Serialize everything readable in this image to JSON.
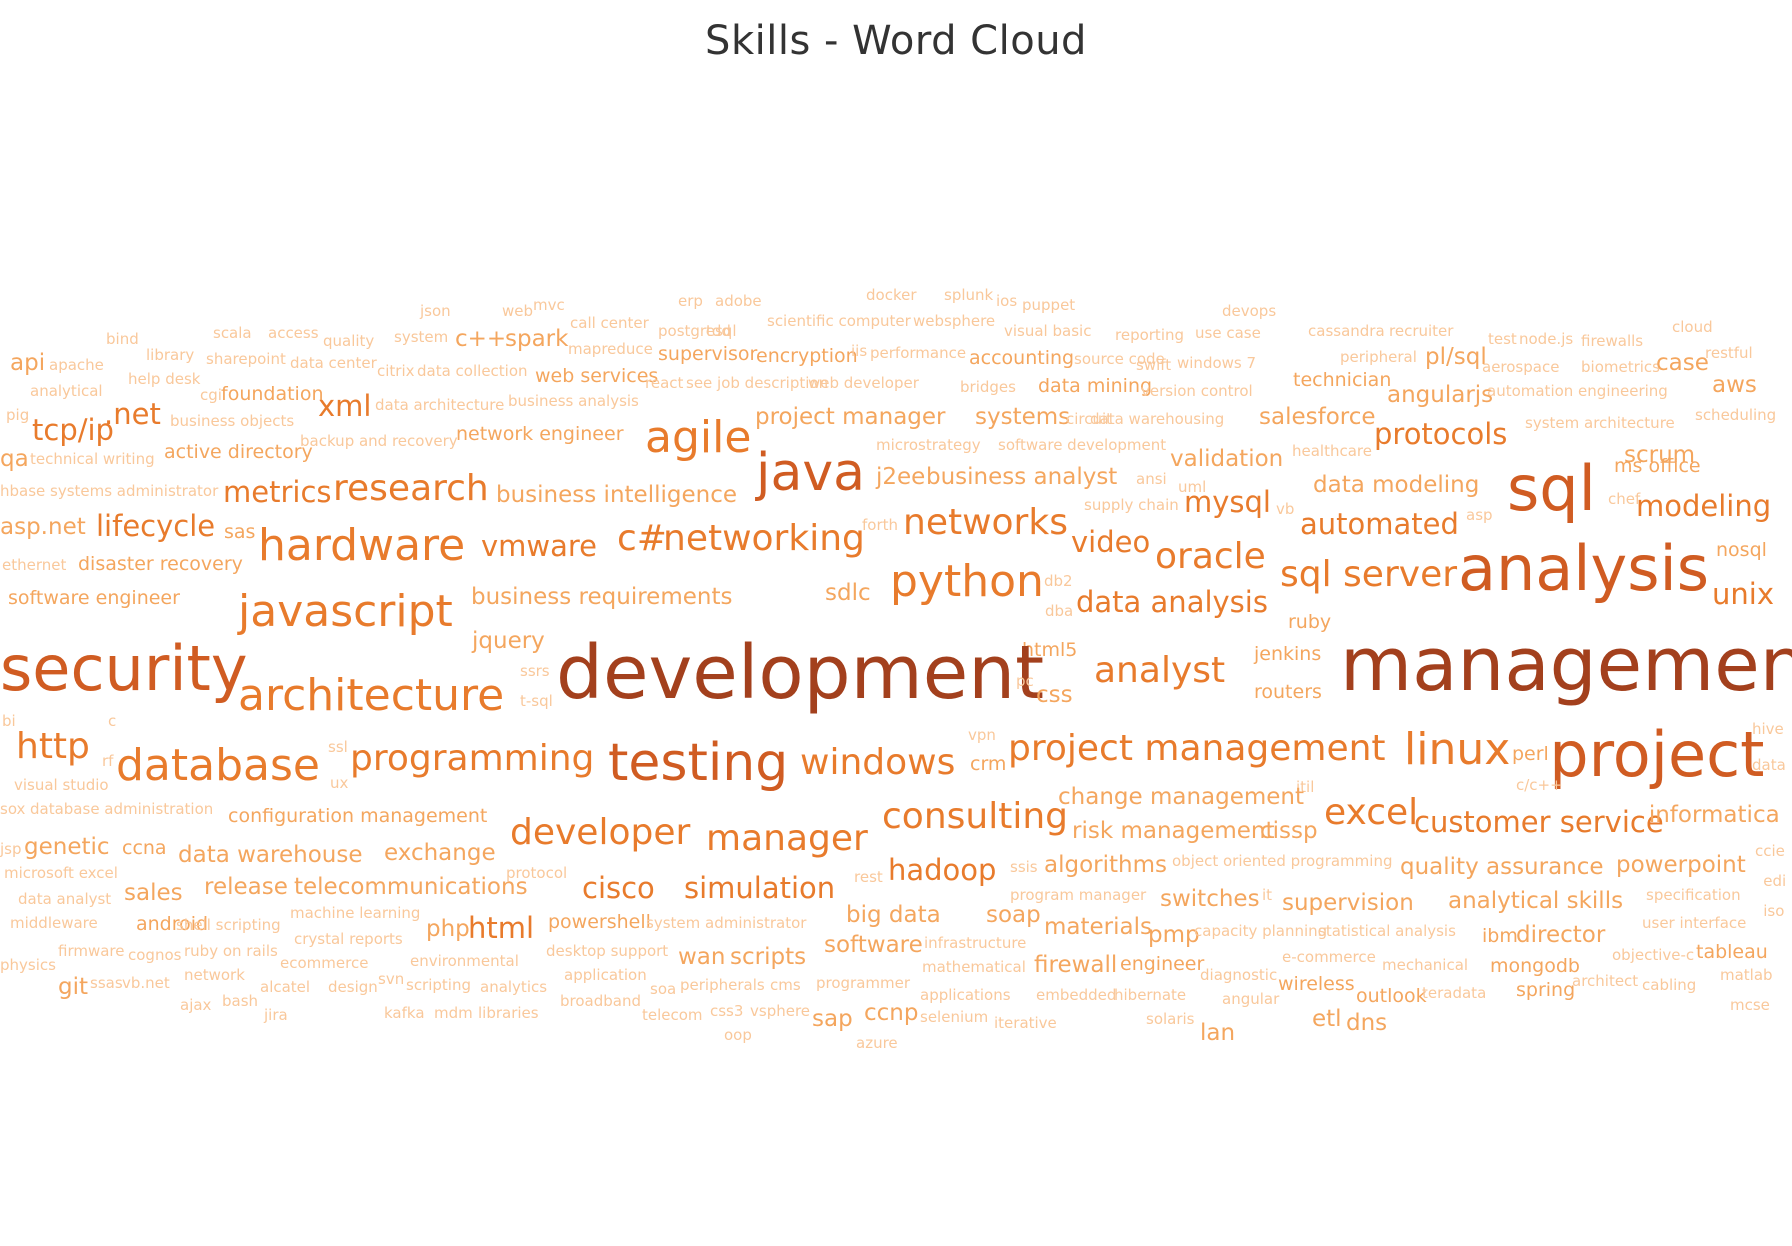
{
  "chart_data": {
    "type": "word_cloud",
    "title": "Skills - Word Cloud",
    "palette": [
      "#f9c89b",
      "#f4a65e",
      "#e87b2c",
      "#d05c22",
      "#a3401d"
    ],
    "words": [
      {
        "text": "docker",
        "weight": 1
      },
      {
        "text": "splunk",
        "weight": 1
      },
      {
        "text": "ios",
        "weight": 1
      },
      {
        "text": "puppet",
        "weight": 1
      },
      {
        "text": "erp",
        "weight": 1
      },
      {
        "text": "adobe",
        "weight": 1
      },
      {
        "text": "json",
        "weight": 1
      },
      {
        "text": "web",
        "weight": 1
      },
      {
        "text": "mvc",
        "weight": 1
      },
      {
        "text": "devops",
        "weight": 1
      },
      {
        "text": "cloud",
        "weight": 1
      },
      {
        "text": "call center",
        "weight": 1
      },
      {
        "text": "postgresql",
        "weight": 1
      },
      {
        "text": "tdd",
        "weight": 1
      },
      {
        "text": "scientific computer",
        "weight": 1
      },
      {
        "text": "websphere",
        "weight": 1
      },
      {
        "text": "visual basic",
        "weight": 1
      },
      {
        "text": "reporting",
        "weight": 1
      },
      {
        "text": "use case",
        "weight": 1
      },
      {
        "text": "cassandra",
        "weight": 1
      },
      {
        "text": "recruiter",
        "weight": 1
      },
      {
        "text": "test",
        "weight": 1
      },
      {
        "text": "node.js",
        "weight": 1
      },
      {
        "text": "firewalls",
        "weight": 1
      },
      {
        "text": "bind",
        "weight": 1
      },
      {
        "text": "scala",
        "weight": 1
      },
      {
        "text": "access",
        "weight": 1
      },
      {
        "text": "quality",
        "weight": 1
      },
      {
        "text": "system",
        "weight": 1
      },
      {
        "text": "c++",
        "weight": 3
      },
      {
        "text": "spark",
        "weight": 3
      },
      {
        "text": "mapreduce",
        "weight": 1
      },
      {
        "text": "library",
        "weight": 1
      },
      {
        "text": "supervisor",
        "weight": 2
      },
      {
        "text": "encryption",
        "weight": 2
      },
      {
        "text": "iis",
        "weight": 1
      },
      {
        "text": "performance",
        "weight": 1
      },
      {
        "text": "accounting",
        "weight": 2
      },
      {
        "text": "source code",
        "weight": 1
      },
      {
        "text": "swift",
        "weight": 1
      },
      {
        "text": "windows 7",
        "weight": 1
      },
      {
        "text": "peripheral",
        "weight": 1
      },
      {
        "text": "pl/sql",
        "weight": 3
      },
      {
        "text": "aerospace",
        "weight": 1
      },
      {
        "text": "biometrics",
        "weight": 1
      },
      {
        "text": "case",
        "weight": 3
      },
      {
        "text": "restful",
        "weight": 1
      },
      {
        "text": "api",
        "weight": 3
      },
      {
        "text": "apache",
        "weight": 1
      },
      {
        "text": "sharepoint",
        "weight": 1
      },
      {
        "text": "data center",
        "weight": 1
      },
      {
        "text": "citrix",
        "weight": 1
      },
      {
        "text": "data collection",
        "weight": 1
      },
      {
        "text": "web services",
        "weight": 2
      },
      {
        "text": "react",
        "weight": 1
      },
      {
        "text": "see job description",
        "weight": 1
      },
      {
        "text": "web developer",
        "weight": 1
      },
      {
        "text": "bridges",
        "weight": 1
      },
      {
        "text": "data mining",
        "weight": 2
      },
      {
        "text": "version control",
        "weight": 1
      },
      {
        "text": "technician",
        "weight": 2
      },
      {
        "text": "aws",
        "weight": 3
      },
      {
        "text": "help desk",
        "weight": 1
      },
      {
        "text": "analytical",
        "weight": 1
      },
      {
        "text": "cgi",
        "weight": 1
      },
      {
        "text": "foundation",
        "weight": 2
      },
      {
        "text": "xml",
        "weight": 4
      },
      {
        "text": "data architecture",
        "weight": 1
      },
      {
        "text": "business analysis",
        "weight": 1
      },
      {
        "text": "angularjs",
        "weight": 3
      },
      {
        "text": "automation engineering",
        "weight": 1
      },
      {
        "text": "pig",
        "weight": 1
      },
      {
        "text": "tcp/ip",
        "weight": 4
      },
      {
        "text": ".net",
        "weight": 4
      },
      {
        "text": "business objects",
        "weight": 1
      },
      {
        "text": "project manager",
        "weight": 3
      },
      {
        "text": "systems",
        "weight": 3
      },
      {
        "text": "circuit",
        "weight": 1
      },
      {
        "text": "data warehousing",
        "weight": 1
      },
      {
        "text": "salesforce",
        "weight": 3
      },
      {
        "text": "scheduling",
        "weight": 1
      },
      {
        "text": "system architecture",
        "weight": 1
      },
      {
        "text": "agile",
        "weight": 6
      },
      {
        "text": "protocols",
        "weight": 4
      },
      {
        "text": "qa",
        "weight": 3
      },
      {
        "text": "technical writing",
        "weight": 1
      },
      {
        "text": "active directory",
        "weight": 2
      },
      {
        "text": "backup and recovery",
        "weight": 1
      },
      {
        "text": "network engineer",
        "weight": 2
      },
      {
        "text": "microstrategy",
        "weight": 1
      },
      {
        "text": "software development",
        "weight": 1
      },
      {
        "text": "healthcare",
        "weight": 1
      },
      {
        "text": "validation",
        "weight": 3
      },
      {
        "text": "scrum",
        "weight": 3
      },
      {
        "text": "java",
        "weight": 7
      },
      {
        "text": "ms office",
        "weight": 2
      },
      {
        "text": "hbase",
        "weight": 1
      },
      {
        "text": "systems administrator",
        "weight": 1
      },
      {
        "text": "metrics",
        "weight": 4
      },
      {
        "text": "research",
        "weight": 5
      },
      {
        "text": "business intelligence",
        "weight": 3
      },
      {
        "text": "j2ee",
        "weight": 3
      },
      {
        "text": "business analyst",
        "weight": 3
      },
      {
        "text": "ansi",
        "weight": 1
      },
      {
        "text": "uml",
        "weight": 1
      },
      {
        "text": "data modeling",
        "weight": 3
      },
      {
        "text": "sql",
        "weight": 8
      },
      {
        "text": "chef",
        "weight": 1
      },
      {
        "text": "modeling",
        "weight": 4
      },
      {
        "text": "asp.net",
        "weight": 3
      },
      {
        "text": "lifecycle",
        "weight": 4
      },
      {
        "text": "sas",
        "weight": 2
      },
      {
        "text": "supply chain",
        "weight": 1
      },
      {
        "text": "mysql",
        "weight": 4
      },
      {
        "text": "vb",
        "weight": 1
      },
      {
        "text": "automated",
        "weight": 4
      },
      {
        "text": "asp",
        "weight": 1
      },
      {
        "text": "hardware",
        "weight": 6
      },
      {
        "text": "forth",
        "weight": 1
      },
      {
        "text": "c#",
        "weight": 5
      },
      {
        "text": "networking",
        "weight": 5
      },
      {
        "text": "networks",
        "weight": 5
      },
      {
        "text": "video",
        "weight": 4
      },
      {
        "text": "oracle",
        "weight": 5
      },
      {
        "text": "nosql",
        "weight": 2
      },
      {
        "text": "ethernet",
        "weight": 1
      },
      {
        "text": "disaster recovery",
        "weight": 2
      },
      {
        "text": "vmware",
        "weight": 4
      },
      {
        "text": "db2",
        "weight": 1
      },
      {
        "text": "sql server",
        "weight": 5
      },
      {
        "text": "analysis",
        "weight": 8
      },
      {
        "text": "python",
        "weight": 6
      },
      {
        "text": "sdlc",
        "weight": 3
      },
      {
        "text": "unix",
        "weight": 4
      },
      {
        "text": "software engineer",
        "weight": 2
      },
      {
        "text": "business requirements",
        "weight": 3
      },
      {
        "text": "dba",
        "weight": 1
      },
      {
        "text": "data analysis",
        "weight": 4
      },
      {
        "text": "ruby",
        "weight": 2
      },
      {
        "text": "javascript",
        "weight": 6
      },
      {
        "text": "jquery",
        "weight": 3
      },
      {
        "text": "security",
        "weight": 8
      },
      {
        "text": "html5",
        "weight": 2
      },
      {
        "text": "jenkins",
        "weight": 2
      },
      {
        "text": "development",
        "weight": 10
      },
      {
        "text": "management",
        "weight": 10
      },
      {
        "text": "ssrs",
        "weight": 1
      },
      {
        "text": "analyst",
        "weight": 5
      },
      {
        "text": "architecture",
        "weight": 6
      },
      {
        "text": "pc",
        "weight": 1
      },
      {
        "text": "css",
        "weight": 3
      },
      {
        "text": "routers",
        "weight": 2
      },
      {
        "text": "t-sql",
        "weight": 1
      },
      {
        "text": "bi",
        "weight": 1
      },
      {
        "text": "c",
        "weight": 1
      },
      {
        "text": "vpn",
        "weight": 1
      },
      {
        "text": "hive",
        "weight": 1
      },
      {
        "text": "http",
        "weight": 5
      },
      {
        "text": "ssl",
        "weight": 1
      },
      {
        "text": "programming",
        "weight": 5
      },
      {
        "text": "project management",
        "weight": 5
      },
      {
        "text": "linux",
        "weight": 6
      },
      {
        "text": "perl",
        "weight": 2
      },
      {
        "text": "project",
        "weight": 8
      },
      {
        "text": "rf",
        "weight": 1
      },
      {
        "text": "database",
        "weight": 6
      },
      {
        "text": "testing",
        "weight": 7
      },
      {
        "text": "windows",
        "weight": 5
      },
      {
        "text": "crm",
        "weight": 2
      },
      {
        "text": "data",
        "weight": 1
      },
      {
        "text": "visual studio",
        "weight": 1
      },
      {
        "text": "ux",
        "weight": 1
      },
      {
        "text": "itil",
        "weight": 1
      },
      {
        "text": "c/c++",
        "weight": 1
      },
      {
        "text": "change management",
        "weight": 3
      },
      {
        "text": "sox",
        "weight": 1
      },
      {
        "text": "database administration",
        "weight": 1
      },
      {
        "text": "configuration management",
        "weight": 2
      },
      {
        "text": "consulting",
        "weight": 5
      },
      {
        "text": "excel",
        "weight": 5
      },
      {
        "text": "customer service",
        "weight": 4
      },
      {
        "text": "informatica",
        "weight": 3
      },
      {
        "text": "developer",
        "weight": 5
      },
      {
        "text": "manager",
        "weight": 5
      },
      {
        "text": "risk management",
        "weight": 3
      },
      {
        "text": "cissp",
        "weight": 3
      },
      {
        "text": "jsp",
        "weight": 1
      },
      {
        "text": "genetic",
        "weight": 3
      },
      {
        "text": "ccna",
        "weight": 2
      },
      {
        "text": "data warehouse",
        "weight": 3
      },
      {
        "text": "exchange",
        "weight": 3
      },
      {
        "text": "hadoop",
        "weight": 4
      },
      {
        "text": "ssis",
        "weight": 1
      },
      {
        "text": "algorithms",
        "weight": 3
      },
      {
        "text": "object oriented programming",
        "weight": 1
      },
      {
        "text": "quality assurance",
        "weight": 3
      },
      {
        "text": "powerpoint",
        "weight": 3
      },
      {
        "text": "ccie",
        "weight": 1
      },
      {
        "text": "microsoft excel",
        "weight": 1
      },
      {
        "text": "protocol",
        "weight": 1
      },
      {
        "text": "rest",
        "weight": 1
      },
      {
        "text": "edi",
        "weight": 1
      },
      {
        "text": "sales",
        "weight": 3
      },
      {
        "text": "release",
        "weight": 3
      },
      {
        "text": "telecommunications",
        "weight": 3
      },
      {
        "text": "cisco",
        "weight": 4
      },
      {
        "text": "simulation",
        "weight": 4
      },
      {
        "text": "program manager",
        "weight": 1
      },
      {
        "text": "it",
        "weight": 1
      },
      {
        "text": "switches",
        "weight": 3
      },
      {
        "text": "supervision",
        "weight": 3
      },
      {
        "text": "analytical skills",
        "weight": 3
      },
      {
        "text": "specification",
        "weight": 1
      },
      {
        "text": "data analyst",
        "weight": 1
      },
      {
        "text": "machine learning",
        "weight": 1
      },
      {
        "text": "big data",
        "weight": 3
      },
      {
        "text": "soap",
        "weight": 3
      },
      {
        "text": "iso",
        "weight": 1
      },
      {
        "text": "middleware",
        "weight": 1
      },
      {
        "text": "android",
        "weight": 2
      },
      {
        "text": "shell scripting",
        "weight": 1
      },
      {
        "text": "php",
        "weight": 3
      },
      {
        "text": "html",
        "weight": 4
      },
      {
        "text": "powershell",
        "weight": 2
      },
      {
        "text": "system administrator",
        "weight": 1
      },
      {
        "text": "materials",
        "weight": 3
      },
      {
        "text": "pmp",
        "weight": 3
      },
      {
        "text": "capacity planning",
        "weight": 1
      },
      {
        "text": "statistical analysis",
        "weight": 1
      },
      {
        "text": "ibm",
        "weight": 2
      },
      {
        "text": "director",
        "weight": 3
      },
      {
        "text": "user interface",
        "weight": 1
      },
      {
        "text": "crystal reports",
        "weight": 1
      },
      {
        "text": "firmware",
        "weight": 1
      },
      {
        "text": "cognos",
        "weight": 1
      },
      {
        "text": "ruby on rails",
        "weight": 1
      },
      {
        "text": "infrastructure",
        "weight": 1
      },
      {
        "text": "desktop support",
        "weight": 1
      },
      {
        "text": "wan",
        "weight": 3
      },
      {
        "text": "scripts",
        "weight": 3
      },
      {
        "text": "software",
        "weight": 3
      },
      {
        "text": "objective-c",
        "weight": 1
      },
      {
        "text": "tableau",
        "weight": 2
      },
      {
        "text": "physics",
        "weight": 1
      },
      {
        "text": "ecommerce",
        "weight": 1
      },
      {
        "text": "environmental",
        "weight": 1
      },
      {
        "text": "e-commerce",
        "weight": 1
      },
      {
        "text": "mechanical",
        "weight": 1
      },
      {
        "text": "mongodb",
        "weight": 2
      },
      {
        "text": "mathematical",
        "weight": 1
      },
      {
        "text": "firewall",
        "weight": 3
      },
      {
        "text": "engineer",
        "weight": 2
      },
      {
        "text": "git",
        "weight": 3
      },
      {
        "text": "ssas",
        "weight": 1
      },
      {
        "text": "vb.net",
        "weight": 1
      },
      {
        "text": "network",
        "weight": 1
      },
      {
        "text": "svn",
        "weight": 1
      },
      {
        "text": "application",
        "weight": 1
      },
      {
        "text": "diagnostic",
        "weight": 1
      },
      {
        "text": "matlab",
        "weight": 1
      },
      {
        "text": "architect",
        "weight": 1
      },
      {
        "text": "cabling",
        "weight": 1
      },
      {
        "text": "alcatel",
        "weight": 1
      },
      {
        "text": "design",
        "weight": 1
      },
      {
        "text": "scripting",
        "weight": 1
      },
      {
        "text": "analytics",
        "weight": 1
      },
      {
        "text": "soa",
        "weight": 1
      },
      {
        "text": "peripherals",
        "weight": 1
      },
      {
        "text": "cms",
        "weight": 1
      },
      {
        "text": "programmer",
        "weight": 1
      },
      {
        "text": "wireless",
        "weight": 2
      },
      {
        "text": "outlook",
        "weight": 2
      },
      {
        "text": "teradata",
        "weight": 1
      },
      {
        "text": "spring",
        "weight": 2
      },
      {
        "text": "ajax",
        "weight": 1
      },
      {
        "text": "bash",
        "weight": 1
      },
      {
        "text": "applications",
        "weight": 1
      },
      {
        "text": "embedded",
        "weight": 1
      },
      {
        "text": "hibernate",
        "weight": 1
      },
      {
        "text": "angular",
        "weight": 1
      },
      {
        "text": "broadband",
        "weight": 1
      },
      {
        "text": "mcse",
        "weight": 1
      },
      {
        "text": "jira",
        "weight": 1
      },
      {
        "text": "kafka",
        "weight": 1
      },
      {
        "text": "mdm",
        "weight": 1
      },
      {
        "text": "libraries",
        "weight": 1
      },
      {
        "text": "telecom",
        "weight": 1
      },
      {
        "text": "css3",
        "weight": 1
      },
      {
        "text": "vsphere",
        "weight": 1
      },
      {
        "text": "sap",
        "weight": 3
      },
      {
        "text": "ccnp",
        "weight": 3
      },
      {
        "text": "selenium",
        "weight": 1
      },
      {
        "text": "iterative",
        "weight": 1
      },
      {
        "text": "solaris",
        "weight": 1
      },
      {
        "text": "etl",
        "weight": 3
      },
      {
        "text": "dns",
        "weight": 3
      },
      {
        "text": "oop",
        "weight": 1
      },
      {
        "text": "azure",
        "weight": 1
      },
      {
        "text": "lan",
        "weight": 3
      }
    ]
  }
}
